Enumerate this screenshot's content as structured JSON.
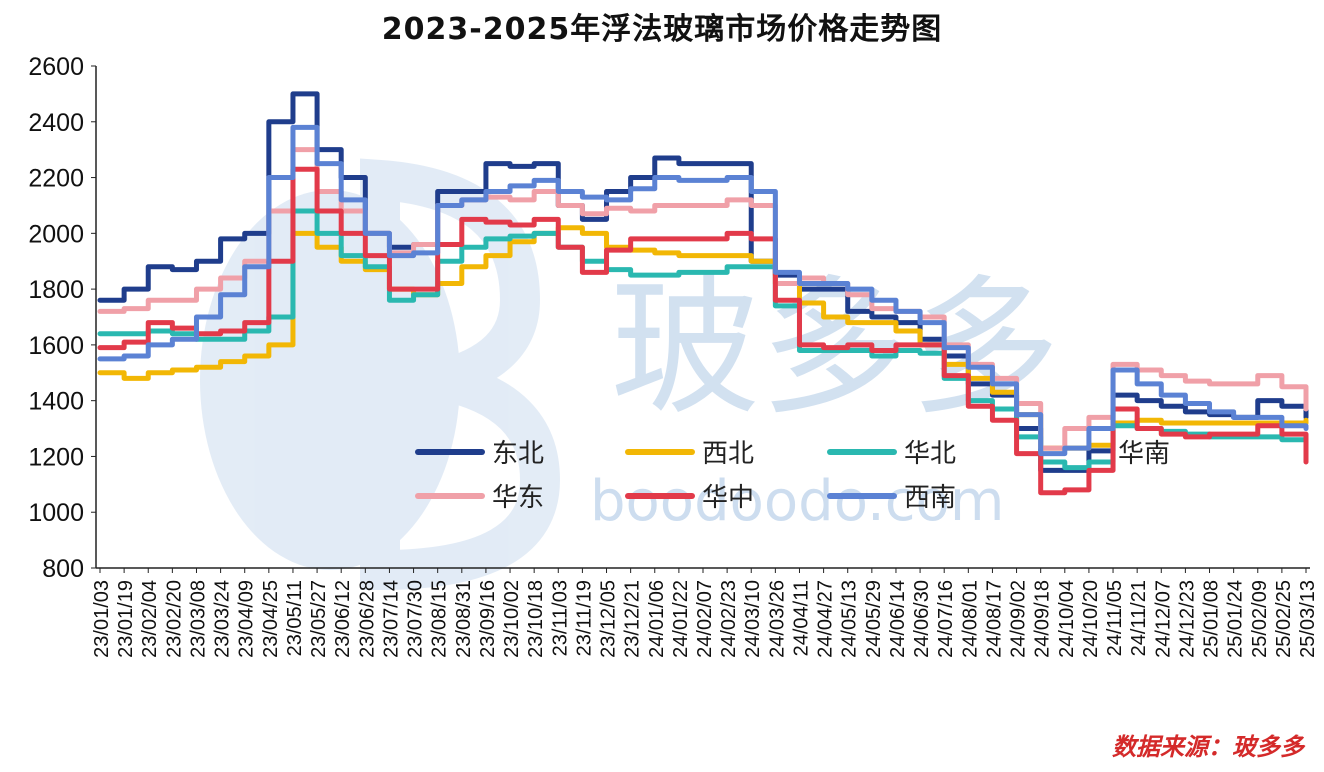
{
  "title": "2023-2025年浮法玻璃市场价格走势图",
  "source_note": "数据来源：玻多多",
  "watermark": {
    "logo_text": "玻多多",
    "site_text": "boodoodo.com"
  },
  "colors": {
    "东北": "#1f3d8c",
    "西北": "#f2b705",
    "华北": "#2ab8b0",
    "华南": "#222222",
    "华东": "#f0a0a8",
    "华中": "#e23a4a",
    "西南": "#5b82d4"
  },
  "chart_data": {
    "type": "line",
    "title": "2023-2025年浮法玻璃市场价格走势图",
    "xlabel": "",
    "ylabel": "",
    "ylim": [
      800,
      2600
    ],
    "yticks": [
      800,
      1000,
      1200,
      1400,
      1600,
      1800,
      2000,
      2200,
      2400,
      2600
    ],
    "grid": false,
    "legend_position": "center-bottom",
    "categories": [
      "23/01/03",
      "23/01/19",
      "23/02/04",
      "23/02/20",
      "23/03/08",
      "23/03/24",
      "23/04/09",
      "23/04/25",
      "23/05/11",
      "23/05/27",
      "23/06/12",
      "23/06/28",
      "23/07/14",
      "23/07/30",
      "23/08/15",
      "23/08/31",
      "23/09/16",
      "23/10/02",
      "23/10/18",
      "23/11/03",
      "23/11/19",
      "23/12/05",
      "23/12/21",
      "24/01/06",
      "24/01/22",
      "24/02/07",
      "24/02/23",
      "24/03/10",
      "24/03/26",
      "24/04/11",
      "24/04/27",
      "24/05/13",
      "24/05/29",
      "24/06/14",
      "24/06/30",
      "24/07/16",
      "24/08/01",
      "24/08/17",
      "24/09/02",
      "24/09/18",
      "24/10/04",
      "24/10/20",
      "24/11/05",
      "24/11/21",
      "24/12/07",
      "24/12/23",
      "25/01/08",
      "25/01/24",
      "25/02/09",
      "25/02/25",
      "25/03/13"
    ],
    "series": [
      {
        "name": "东北",
        "values": [
          1760,
          1800,
          1880,
          1870,
          1900,
          1980,
          2000,
          2400,
          2500,
          2300,
          2200,
          2000,
          1950,
          1960,
          2150,
          2150,
          2250,
          2240,
          2250,
          2100,
          2050,
          2150,
          2200,
          2270,
          2250,
          2250,
          2250,
          1900,
          1850,
          1800,
          1800,
          1720,
          1700,
          1680,
          1620,
          1560,
          1460,
          1420,
          1300,
          1150,
          1150,
          1220,
          1420,
          1400,
          1380,
          1360,
          1350,
          1340,
          1400,
          1380,
          1340
        ]
      },
      {
        "name": "西北",
        "values": [
          1500,
          1480,
          1500,
          1510,
          1520,
          1540,
          1560,
          1600,
          2000,
          1950,
          1900,
          1870,
          1800,
          1780,
          1820,
          1880,
          1920,
          1970,
          2000,
          2020,
          2000,
          1950,
          1940,
          1930,
          1920,
          1920,
          1920,
          1900,
          1820,
          1750,
          1700,
          1680,
          1680,
          1650,
          1600,
          1530,
          1480,
          1430,
          1350,
          1230,
          1230,
          1240,
          1320,
          1330,
          1320,
          1320,
          1320,
          1320,
          1320,
          1320,
          1330
        ]
      },
      {
        "name": "华北",
        "values": [
          1640,
          1640,
          1650,
          1640,
          1620,
          1620,
          1650,
          1700,
          2080,
          2000,
          1920,
          1880,
          1760,
          1780,
          1900,
          1950,
          1980,
          1990,
          2000,
          1950,
          1900,
          1870,
          1850,
          1850,
          1860,
          1860,
          1880,
          1880,
          1740,
          1580,
          1580,
          1580,
          1560,
          1580,
          1570,
          1480,
          1400,
          1370,
          1270,
          1180,
          1160,
          1180,
          1310,
          1300,
          1290,
          1280,
          1270,
          1270,
          1270,
          1260,
          1220
        ]
      },
      {
        "name": "华东",
        "values": [
          1720,
          1730,
          1760,
          1760,
          1800,
          1840,
          1900,
          2080,
          2300,
          2150,
          2080,
          2000,
          1930,
          1960,
          2100,
          2120,
          2130,
          2120,
          2150,
          2100,
          2070,
          2090,
          2080,
          2100,
          2100,
          2100,
          2120,
          2100,
          1820,
          1840,
          1820,
          1780,
          1730,
          1720,
          1700,
          1600,
          1530,
          1480,
          1390,
          1230,
          1300,
          1340,
          1530,
          1510,
          1490,
          1470,
          1460,
          1460,
          1490,
          1450,
          1370
        ]
      },
      {
        "name": "华中",
        "values": [
          1590,
          1610,
          1680,
          1660,
          1640,
          1650,
          1680,
          1900,
          2230,
          2080,
          2000,
          1920,
          1800,
          1800,
          1960,
          2050,
          2040,
          2030,
          2050,
          1950,
          1860,
          1940,
          1980,
          1980,
          1980,
          1980,
          2000,
          1980,
          1760,
          1600,
          1590,
          1600,
          1580,
          1600,
          1600,
          1490,
          1380,
          1330,
          1210,
          1070,
          1080,
          1150,
          1370,
          1300,
          1280,
          1270,
          1280,
          1280,
          1310,
          1280,
          1180
        ]
      },
      {
        "name": "西南",
        "values": [
          1550,
          1560,
          1600,
          1620,
          1700,
          1780,
          1880,
          2200,
          2380,
          2250,
          2120,
          2000,
          1920,
          1930,
          2100,
          2120,
          2150,
          2170,
          2190,
          2150,
          2130,
          2120,
          2160,
          2200,
          2190,
          2190,
          2200,
          2150,
          1860,
          1820,
          1820,
          1800,
          1760,
          1720,
          1680,
          1590,
          1520,
          1460,
          1350,
          1210,
          1230,
          1300,
          1510,
          1460,
          1420,
          1390,
          1360,
          1340,
          1340,
          1310,
          1300
        ]
      }
    ],
    "legend_labels_without_line": [
      "华南"
    ]
  }
}
